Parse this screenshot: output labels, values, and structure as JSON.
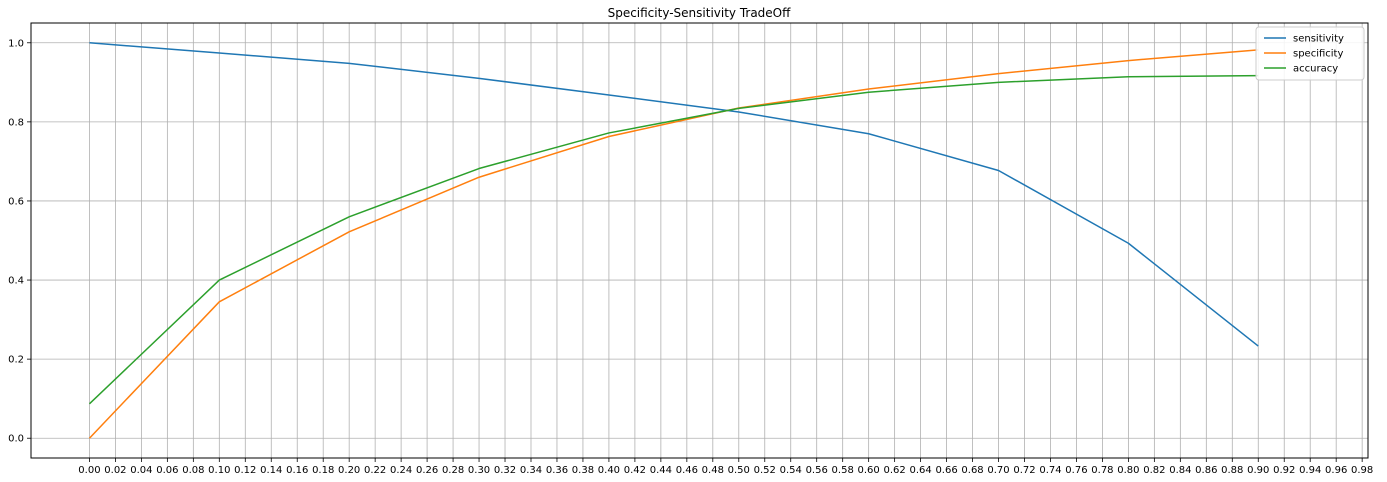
{
  "chart_data": {
    "type": "line",
    "title": "Specificity-Sensitivity TradeOff",
    "xlabel": "",
    "ylabel": "",
    "x": [
      0.0,
      0.1,
      0.2,
      0.3,
      0.4,
      0.5,
      0.6,
      0.7,
      0.8,
      0.9
    ],
    "series": [
      {
        "name": "sensitivity",
        "color": "#1f77b4",
        "values": [
          1.0,
          0.974,
          0.948,
          0.91,
          0.868,
          0.825,
          0.77,
          0.677,
          0.493,
          0.233
        ]
      },
      {
        "name": "specificity",
        "color": "#ff7f0e",
        "values": [
          0.0,
          0.345,
          0.522,
          0.66,
          0.763,
          0.835,
          0.883,
          0.922,
          0.955,
          0.982
        ]
      },
      {
        "name": "accuracy",
        "color": "#2ca02c",
        "values": [
          0.087,
          0.4,
          0.56,
          0.682,
          0.772,
          0.834,
          0.875,
          0.9,
          0.914,
          0.917
        ]
      }
    ],
    "xlim": [
      -0.045,
      0.9845
    ],
    "ylim": [
      -0.05,
      1.05
    ],
    "x_ticks": [
      "0.00",
      "0.02",
      "0.04",
      "0.06",
      "0.08",
      "0.10",
      "0.12",
      "0.14",
      "0.16",
      "0.18",
      "0.20",
      "0.22",
      "0.24",
      "0.26",
      "0.28",
      "0.30",
      "0.32",
      "0.34",
      "0.36",
      "0.38",
      "0.40",
      "0.42",
      "0.44",
      "0.46",
      "0.48",
      "0.50",
      "0.52",
      "0.54",
      "0.56",
      "0.58",
      "0.60",
      "0.62",
      "0.64",
      "0.66",
      "0.68",
      "0.70",
      "0.72",
      "0.74",
      "0.76",
      "0.78",
      "0.80",
      "0.82",
      "0.84",
      "0.86",
      "0.88",
      "0.90",
      "0.92",
      "0.94",
      "0.96",
      "0.98"
    ],
    "y_ticks": [
      "0.0",
      "0.2",
      "0.4",
      "0.6",
      "0.8",
      "1.0"
    ],
    "grid": true,
    "legend_position": "top-right"
  }
}
